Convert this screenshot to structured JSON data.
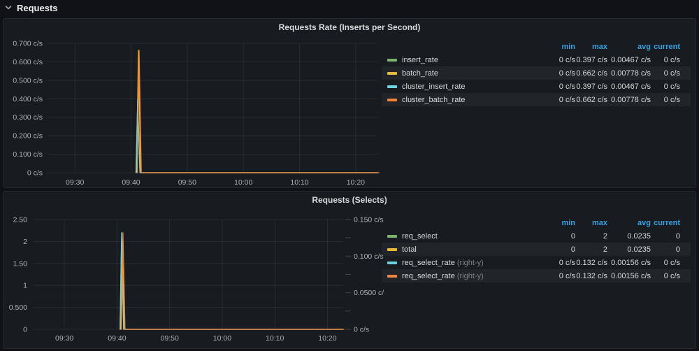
{
  "row": {
    "title": "Requests"
  },
  "colors": {
    "green": "#7EB26D",
    "yellow": "#EAB839",
    "cyan": "#6ED0E0",
    "orange": "#EF843C",
    "legend_header_blue": "#33A2E5",
    "panel_bg": "#181b1f",
    "page_bg": "#111217"
  },
  "legend_headers": [
    "min",
    "max",
    "avg",
    "current"
  ],
  "panels": [
    {
      "title": "Requests Rate (Inserts per Second)",
      "legend": [
        {
          "name": "insert_rate",
          "suffix": "",
          "color": "#7EB26D",
          "values": [
            "0 c/s",
            "0.397 c/s",
            "0.00467 c/s",
            "0 c/s"
          ]
        },
        {
          "name": "batch_rate",
          "suffix": "",
          "color": "#EAB839",
          "values": [
            "0 c/s",
            "0.662 c/s",
            "0.00778 c/s",
            "0 c/s"
          ]
        },
        {
          "name": "cluster_insert_rate",
          "suffix": "",
          "color": "#6ED0E0",
          "values": [
            "0 c/s",
            "0.397 c/s",
            "0.00467 c/s",
            "0 c/s"
          ]
        },
        {
          "name": "cluster_batch_rate",
          "suffix": "",
          "color": "#EF843C",
          "values": [
            "0 c/s",
            "0.662 c/s",
            "0.00778 c/s",
            "0 c/s"
          ]
        }
      ]
    },
    {
      "title": "Requests (Selects)",
      "legend": [
        {
          "name": "req_select",
          "suffix": "",
          "color": "#7EB26D",
          "values": [
            "0",
            "2",
            "0.0235",
            "0"
          ]
        },
        {
          "name": "total",
          "suffix": "",
          "color": "#EAB839",
          "values": [
            "0",
            "2",
            "0.0235",
            "0"
          ]
        },
        {
          "name": "req_select_rate",
          "suffix": "(right-y)",
          "color": "#6ED0E0",
          "values": [
            "0 c/s",
            "0.132 c/s",
            "0.00156 c/s",
            "0 c/s"
          ]
        },
        {
          "name": "req_select_rate",
          "suffix": "(right-y)",
          "color": "#EF843C",
          "values": [
            "0 c/s",
            "0.132 c/s",
            "0.00156 c/s",
            "0 c/s"
          ]
        }
      ]
    }
  ],
  "chart_data": [
    {
      "type": "line",
      "title": "Requests Rate (Inserts per Second)",
      "x_axis": {
        "range": [
          565,
          624
        ],
        "unit": "time-of-day minutes",
        "ticks": [
          {
            "v": 570,
            "label": "09:30"
          },
          {
            "v": 580,
            "label": "09:40"
          },
          {
            "v": 590,
            "label": "09:50"
          },
          {
            "v": 600,
            "label": "10:00"
          },
          {
            "v": 610,
            "label": "10:10"
          },
          {
            "v": 620,
            "label": "10:20"
          }
        ]
      },
      "y_axis": {
        "range": [
          0,
          0.7
        ],
        "unit": "c/s",
        "ticks": [
          {
            "v": 0.7,
            "label": "0.700 c/s"
          },
          {
            "v": 0.6,
            "label": "0.600 c/s"
          },
          {
            "v": 0.5,
            "label": "0.500 c/s"
          },
          {
            "v": 0.4,
            "label": "0.400 c/s"
          },
          {
            "v": 0.3,
            "label": "0.300 c/s"
          },
          {
            "v": 0.2,
            "label": "0.200 c/s"
          },
          {
            "v": 0.1,
            "label": "0.100 c/s"
          },
          {
            "v": 0,
            "label": "0 c/s"
          }
        ]
      },
      "series": [
        {
          "name": "insert_rate",
          "color": "#7EB26D",
          "axis": "left",
          "points": [
            [
              581,
              0
            ],
            [
              581.3,
              0.397
            ],
            [
              581.7,
              0
            ],
            [
              624,
              0
            ]
          ]
        },
        {
          "name": "batch_rate",
          "color": "#EAB839",
          "axis": "left",
          "points": [
            [
              581,
              0
            ],
            [
              581.3,
              0.662
            ],
            [
              581.7,
              0
            ],
            [
              624,
              0
            ]
          ]
        },
        {
          "name": "cluster_insert_rate",
          "color": "#6ED0E0",
          "axis": "left",
          "points": [
            [
              581,
              0
            ],
            [
              581.3,
              0.397
            ],
            [
              581.7,
              0
            ],
            [
              624,
              0
            ]
          ]
        },
        {
          "name": "cluster_batch_rate",
          "color": "#EF843C",
          "axis": "left",
          "points": [
            [
              581,
              0
            ],
            [
              581.3,
              0.662
            ],
            [
              581.7,
              0
            ],
            [
              624,
              0
            ]
          ]
        }
      ]
    },
    {
      "type": "line",
      "title": "Requests (Selects)",
      "x_axis": {
        "range": [
          564,
          623
        ],
        "unit": "time-of-day minutes",
        "ticks": [
          {
            "v": 570,
            "label": "09:30"
          },
          {
            "v": 580,
            "label": "09:40"
          },
          {
            "v": 590,
            "label": "09:50"
          },
          {
            "v": 600,
            "label": "10:00"
          },
          {
            "v": 610,
            "label": "10:10"
          },
          {
            "v": 620,
            "label": "10:20"
          }
        ]
      },
      "y_axis": {
        "range": [
          0,
          2.5
        ],
        "unit": "",
        "ticks": [
          {
            "v": 2.5,
            "label": "2.50"
          },
          {
            "v": 2,
            "label": "2"
          },
          {
            "v": 1.5,
            "label": "1.50"
          },
          {
            "v": 1,
            "label": "1"
          },
          {
            "v": 0.5,
            "label": "0.500"
          },
          {
            "v": 0,
            "label": "0"
          }
        ]
      },
      "y_axis_right": {
        "range": [
          0,
          0.15
        ],
        "unit": "c/s",
        "ticks": [
          {
            "v": 0.15,
            "label": "0.150 c/s"
          },
          {
            "v": 0.125,
            "label": ""
          },
          {
            "v": 0.1,
            "label": "0.100 c/s"
          },
          {
            "v": 0.075,
            "label": ""
          },
          {
            "v": 0.05,
            "label": "0.0500 c/s"
          },
          {
            "v": 0.025,
            "label": ""
          },
          {
            "v": 0,
            "label": "0 c/s"
          }
        ]
      },
      "series": [
        {
          "name": "req_select",
          "color": "#7EB26D",
          "axis": "left",
          "points": [
            [
              580.7,
              0
            ],
            [
              581,
              2
            ],
            [
              581.4,
              0
            ],
            [
              623,
              0
            ]
          ]
        },
        {
          "name": "total",
          "color": "#EAB839",
          "axis": "left",
          "points": [
            [
              580.7,
              0
            ],
            [
              581,
              2
            ],
            [
              581.4,
              0
            ],
            [
              623,
              0
            ]
          ]
        },
        {
          "name": "req_select_rate",
          "color": "#6ED0E0",
          "axis": "right",
          "points": [
            [
              580.7,
              0
            ],
            [
              581,
              0.132
            ],
            [
              581.4,
              0
            ],
            [
              623,
              0
            ]
          ]
        },
        {
          "name": "req_select_rate",
          "color": "#EF843C",
          "axis": "right",
          "points": [
            [
              580.7,
              0
            ],
            [
              581,
              0.132
            ],
            [
              581.4,
              0
            ],
            [
              623,
              0
            ]
          ]
        }
      ]
    }
  ]
}
